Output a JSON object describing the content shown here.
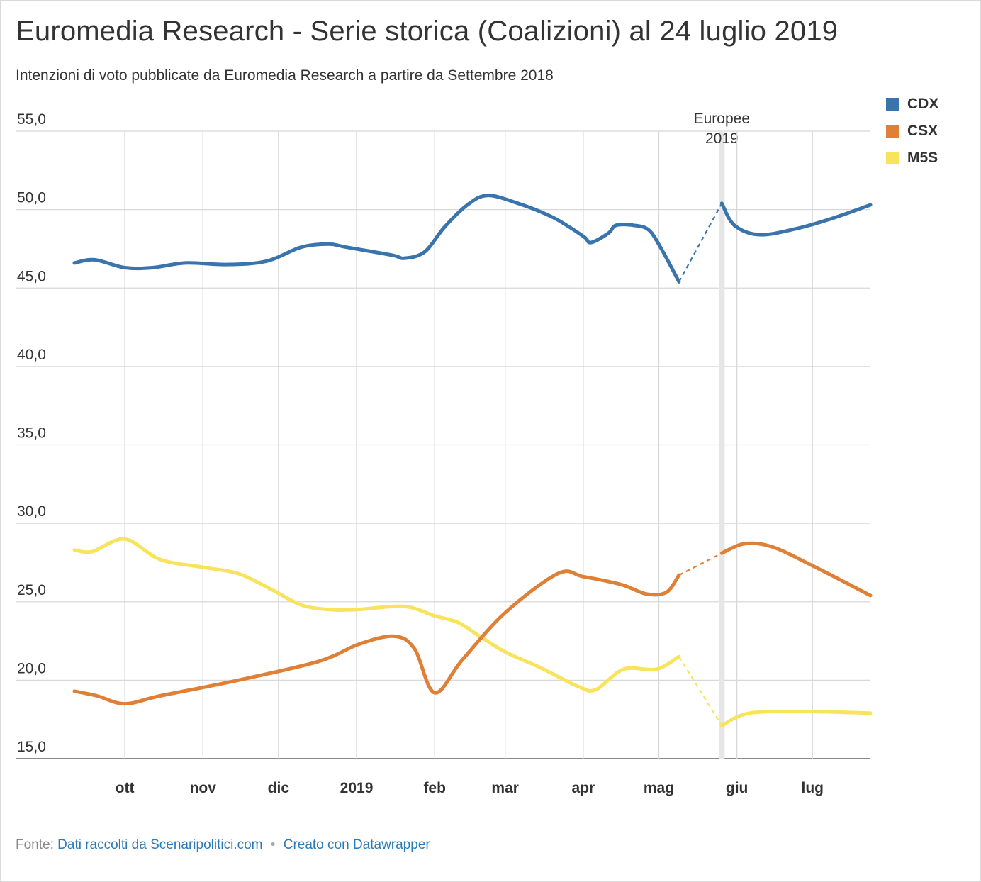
{
  "header": {
    "title": "Euromedia Research - Serie storica (Coalizioni) al 24 luglio 2019",
    "subtitle": "Intenzioni di voto pubblicate da Euromedia Research a partire da Settembre 2018"
  },
  "footer": {
    "source_prefix": "Fonte:",
    "source_link": "Dati raccolti da Scenaripolitici.com",
    "separator": "•",
    "made_with": "Creato con Datawrapper"
  },
  "chart_data": {
    "type": "line",
    "title": "Euromedia Research - Serie storica (Coalizioni) al 24 luglio 2019",
    "subtitle": "Intenzioni di voto pubblicate da Euromedia Research a partire da Settembre 2018",
    "x_axis": {
      "type": "date",
      "range": [
        "2018-09-11",
        "2019-07-24"
      ],
      "ticks": [
        {
          "date": "2018-10-01",
          "label": "ott"
        },
        {
          "date": "2018-11-01",
          "label": "nov"
        },
        {
          "date": "2018-12-01",
          "label": "dic"
        },
        {
          "date": "2019-01-01",
          "label": "2019"
        },
        {
          "date": "2019-02-01",
          "label": "feb"
        },
        {
          "date": "2019-03-01",
          "label": "mar"
        },
        {
          "date": "2019-04-01",
          "label": "apr"
        },
        {
          "date": "2019-05-01",
          "label": "mag"
        },
        {
          "date": "2019-06-01",
          "label": "giu"
        },
        {
          "date": "2019-07-01",
          "label": "lug"
        }
      ]
    },
    "y_axis": {
      "range": [
        15,
        55
      ],
      "ticks": [
        15,
        20,
        25,
        30,
        35,
        40,
        45,
        50,
        55
      ],
      "tick_labels": [
        "15,0",
        "20,0",
        "25,0",
        "30,0",
        "35,0",
        "40,0",
        "45,0",
        "50,0",
        "55,0"
      ]
    },
    "grid": true,
    "legend_position": "top-right",
    "annotation": {
      "date": "2019-05-26",
      "label_line1": "Europee",
      "label_line2": "2019"
    },
    "series": [
      {
        "name": "CDX",
        "color": "#3a74ad",
        "dashed_from": "2019-05-09",
        "points": [
          [
            "2018-09-11",
            46.6
          ],
          [
            "2018-09-19",
            46.8
          ],
          [
            "2018-10-01",
            46.3
          ],
          [
            "2018-10-12",
            46.3
          ],
          [
            "2018-10-25",
            46.6
          ],
          [
            "2018-11-10",
            46.5
          ],
          [
            "2018-11-26",
            46.7
          ],
          [
            "2018-12-10",
            47.6
          ],
          [
            "2018-12-21",
            47.8
          ],
          [
            "2018-12-28",
            47.6
          ],
          [
            "2019-01-15",
            47.1
          ],
          [
            "2019-01-20",
            46.9
          ],
          [
            "2019-01-28",
            47.3
          ],
          [
            "2019-02-05",
            48.9
          ],
          [
            "2019-02-14",
            50.3
          ],
          [
            "2019-02-22",
            50.9
          ],
          [
            "2019-03-06",
            50.4
          ],
          [
            "2019-03-20",
            49.5
          ],
          [
            "2019-04-01",
            48.3
          ],
          [
            "2019-04-04",
            47.9
          ],
          [
            "2019-04-11",
            48.5
          ],
          [
            "2019-04-14",
            49.0
          ],
          [
            "2019-04-21",
            49.0
          ],
          [
            "2019-04-27",
            48.7
          ],
          [
            "2019-05-02",
            47.5
          ],
          [
            "2019-05-09",
            45.4
          ],
          [
            "2019-05-26",
            50.4
          ],
          [
            "2019-05-31",
            49.0
          ],
          [
            "2019-06-10",
            48.4
          ],
          [
            "2019-06-25",
            48.8
          ],
          [
            "2019-07-10",
            49.5
          ],
          [
            "2019-07-24",
            50.3
          ]
        ]
      },
      {
        "name": "CSX",
        "color": "#e07f36",
        "dashed_from": "2019-05-09",
        "points": [
          [
            "2018-09-11",
            19.3
          ],
          [
            "2018-09-20",
            19.0
          ],
          [
            "2018-10-01",
            18.5
          ],
          [
            "2018-10-15",
            19.0
          ],
          [
            "2018-11-15",
            20.0
          ],
          [
            "2018-12-17",
            21.2
          ],
          [
            "2019-01-02",
            22.3
          ],
          [
            "2019-01-16",
            22.8
          ],
          [
            "2019-01-24",
            22.0
          ],
          [
            "2019-02-01",
            19.2
          ],
          [
            "2019-02-12",
            21.3
          ],
          [
            "2019-03-01",
            24.3
          ],
          [
            "2019-03-22",
            26.8
          ],
          [
            "2019-04-01",
            26.6
          ],
          [
            "2019-04-16",
            26.1
          ],
          [
            "2019-04-26",
            25.5
          ],
          [
            "2019-05-04",
            25.6
          ],
          [
            "2019-05-09",
            26.7
          ],
          [
            "2019-05-26",
            28.1
          ],
          [
            "2019-06-04",
            28.7
          ],
          [
            "2019-06-15",
            28.5
          ],
          [
            "2019-07-01",
            27.3
          ],
          [
            "2019-07-24",
            25.4
          ]
        ]
      },
      {
        "name": "M5S",
        "color": "#f8e45c",
        "dashed_from": "2019-05-09",
        "points": [
          [
            "2018-09-11",
            28.3
          ],
          [
            "2018-09-18",
            28.2
          ],
          [
            "2018-10-01",
            29.0
          ],
          [
            "2018-10-15",
            27.7
          ],
          [
            "2018-11-01",
            27.2
          ],
          [
            "2018-11-15",
            26.8
          ],
          [
            "2018-11-28",
            25.8
          ],
          [
            "2018-12-10",
            24.8
          ],
          [
            "2018-12-21",
            24.5
          ],
          [
            "2019-01-01",
            24.5
          ],
          [
            "2019-01-20",
            24.7
          ],
          [
            "2019-02-01",
            24.1
          ],
          [
            "2019-02-10",
            23.7
          ],
          [
            "2019-02-18",
            22.9
          ],
          [
            "2019-03-01",
            21.8
          ],
          [
            "2019-03-15",
            20.8
          ],
          [
            "2019-03-30",
            19.6
          ],
          [
            "2019-04-06",
            19.4
          ],
          [
            "2019-04-17",
            20.7
          ],
          [
            "2019-04-30",
            20.7
          ],
          [
            "2019-05-09",
            21.5
          ],
          [
            "2019-05-26",
            17.1
          ],
          [
            "2019-06-06",
            17.9
          ],
          [
            "2019-06-30",
            18.0
          ],
          [
            "2019-07-24",
            17.9
          ]
        ]
      }
    ]
  }
}
